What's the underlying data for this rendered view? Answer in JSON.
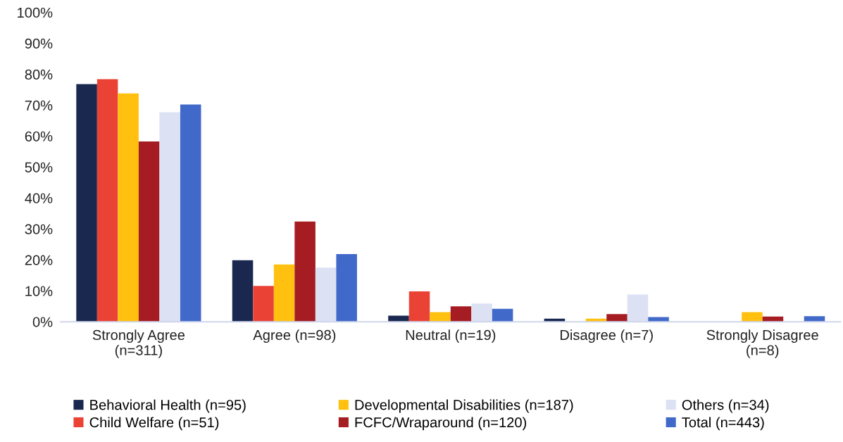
{
  "chart_data": {
    "type": "bar",
    "categories": [
      "Strongly Agree\n(n=311)",
      "Agree (n=98)",
      "Neutral (n=19)",
      "Disagree (n=7)",
      "Strongly Disagree\n(n=8)"
    ],
    "series": [
      {
        "name": "Behavioral Health (n=95)",
        "color": "#1a2850",
        "values": [
          76.8,
          19.9,
          2.0,
          1.0,
          0
        ]
      },
      {
        "name": "Child Welfare (n=51)",
        "color": "#ea4335",
        "values": [
          78.4,
          11.6,
          9.8,
          0,
          0
        ]
      },
      {
        "name": "Developmental Disabilities (n=187)",
        "color": "#ffc00f",
        "values": [
          73.8,
          18.5,
          3.1,
          1.0,
          3.1
        ]
      },
      {
        "name": "FCFC/Wraparound (n=120)",
        "color": "#a51c22",
        "values": [
          58.3,
          32.4,
          5.0,
          2.5,
          1.7
        ]
      },
      {
        "name": "Others (n=34)",
        "color": "#dce1f4",
        "values": [
          67.7,
          17.5,
          5.9,
          8.8,
          0
        ]
      },
      {
        "name": "Total (n=443)",
        "color": "#4169c9",
        "values": [
          70.2,
          21.9,
          4.2,
          1.5,
          1.8
        ]
      }
    ],
    "ylim": [
      0,
      100
    ],
    "yticks": [
      {
        "value": 0,
        "label": "0%"
      },
      {
        "value": 10,
        "label": "10%"
      },
      {
        "value": 20,
        "label": "20%"
      },
      {
        "value": 30,
        "label": "30%"
      },
      {
        "value": 40,
        "label": "40%"
      },
      {
        "value": 50,
        "label": "50%"
      },
      {
        "value": 60,
        "label": "60%"
      },
      {
        "value": 70,
        "label": "70%"
      },
      {
        "value": 80,
        "label": "80%"
      },
      {
        "value": 90,
        "label": "90%"
      },
      {
        "value": 100,
        "label": "100%"
      }
    ],
    "grid": false,
    "legend": "bottom"
  }
}
